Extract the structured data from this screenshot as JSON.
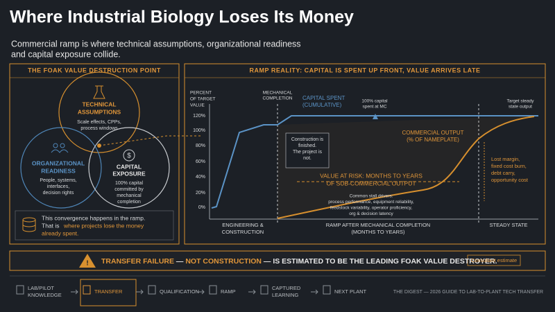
{
  "header": {
    "title": "Where Industrial Biology Loses Its Money",
    "subtitle": [
      "Commercial ramp is where technical assumptions, organizational readiness",
      "and capital exposure collide."
    ]
  },
  "venn_panel": {
    "title": "THE FOAK VALUE DESTRUCTION POINT",
    "circles": [
      {
        "label": [
          "TECHNICAL",
          "ASSUMPTIONS"
        ],
        "detail": [
          "Scale effects, CPPs,",
          "process windows"
        ]
      },
      {
        "label": [
          "ORGANIZATIONAL",
          "READINESS"
        ],
        "detail": [
          "People, systems,",
          "interfaces,",
          "decision rights"
        ]
      },
      {
        "label": [
          "CAPITAL",
          "EXPOSURE"
        ],
        "detail": [
          "100% capital",
          "committed by",
          "mechanical",
          "completion"
        ]
      }
    ],
    "note": {
      "line1": "This convergence happens in the ramp.",
      "line2_plain": "That is",
      "line2_emphasis": "where projects lose the money",
      "line3_emphasis": "already spent."
    }
  },
  "ramp_panel": {
    "title": "RAMP REALITY: CAPITAL IS SPENT UP FRONT, VALUE ARRIVES LATE",
    "y_axis_title": [
      "PERCENT",
      "OF TARGET",
      "VALUE"
    ],
    "y_ticks": [
      "120%",
      "100%",
      "80%",
      "60%",
      "40%",
      "20%",
      "0%"
    ],
    "mechanical_completion": [
      "MECHANICAL",
      "COMPLETION"
    ],
    "capital_label": [
      "CAPITAL SPENT",
      "(CUMULATIVE)"
    ],
    "capital_note": [
      "100% capital",
      "spent at MC"
    ],
    "target_note": [
      "Target steady",
      "state output"
    ],
    "construction_box": [
      "Construction is",
      "finished.",
      "The project is",
      "not."
    ],
    "output_label": [
      "COMMERCIAL OUTPUT",
      "(% OF NAMEPLATE)"
    ],
    "value_at_risk": [
      "VALUE AT RISK: MONTHS TO YEARS",
      "OF SUB-COMMERCIAL OUTPUT"
    ],
    "stall_drivers": [
      "Common stall drivers:",
      "process performance, equipment reliability,",
      "feedstock variability, operator proficiency,",
      "org & decision latency"
    ],
    "losses": [
      "Lost margin,",
      "fixed cost burn,",
      "debt carry,",
      "opportunity cost"
    ],
    "phases": [
      [
        "ENGINEERING &",
        "CONSTRUCTION"
      ],
      [
        "RAMP AFTER MECHANICAL COMPLETION",
        "(MONTHS TO YEARS)"
      ],
      [
        "STEADY STATE"
      ]
    ]
  },
  "banner": {
    "part1": "TRANSFER FAILURE",
    "part2": "—",
    "part3": "NOT CONSTRUCTION",
    "part4": "— IS ESTIMATED TO BE THE LEADING FOAK VALUE DESTROYER.",
    "badge": "Consultant estimate"
  },
  "flow": {
    "steps": [
      [
        "LAB/PILOT",
        "KNOWLEDGE"
      ],
      [
        "TRANSFER"
      ],
      [
        "QUALIFICATION"
      ],
      [
        "RAMP"
      ],
      [
        "CAPTURED",
        "LEARNING"
      ],
      [
        "NEXT PLANT"
      ]
    ],
    "source": "THE DIGEST — 2026 GUIDE TO LAB-TO-PLANT TECH TRANSFER"
  }
}
